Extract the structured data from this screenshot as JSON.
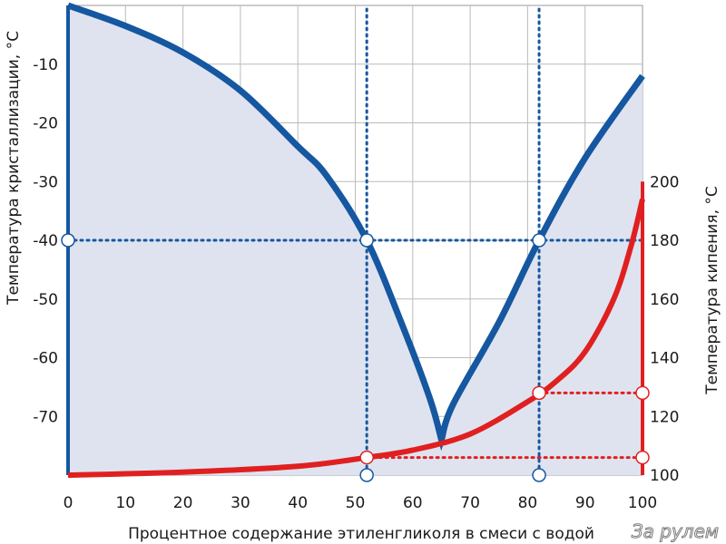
{
  "chart_data": {
    "type": "line",
    "xlabel": "Процентное содержание этиленгликоля в смеси с водой",
    "ylabel_left": "Температура кристаллизации, °C",
    "ylabel_right": "Температура кипения, °C",
    "xlim": [
      0,
      100
    ],
    "ylim_left": [
      -80,
      0
    ],
    "ylim_right": [
      100,
      200
    ],
    "x_ticks": [
      "0",
      "10",
      "20",
      "30",
      "40",
      "50",
      "60",
      "70",
      "80",
      "90",
      "100"
    ],
    "y_left_ticks": [
      "-10",
      "-20",
      "-30",
      "-40",
      "-50",
      "-60",
      "-70"
    ],
    "y_right_ticks": [
      "100",
      "120",
      "140",
      "160",
      "180",
      "200"
    ],
    "grid": true,
    "colors": {
      "crystallization": "#1557a0",
      "boiling": "#e02020",
      "fill": "#dfe3f0",
      "grid": "#bbbbbb"
    },
    "series": [
      {
        "axis": "left",
        "x": [
          0,
          10,
          20,
          30,
          40,
          45,
          52,
          58,
          63,
          65,
          67,
          75,
          82,
          90,
          100
        ],
        "y": [
          0,
          -3.5,
          -8,
          -14.5,
          -24,
          -29,
          -40,
          -54,
          -67,
          -74,
          -68,
          -54,
          -40,
          -26,
          -12
        ]
      },
      {
        "axis": "right",
        "x": [
          0,
          20,
          40,
          52,
          60,
          70,
          80,
          85,
          90,
          95,
          98,
          100
        ],
        "y": [
          100,
          101,
          103,
          106,
          108.5,
          114,
          125,
          132,
          142,
          160,
          178,
          194
        ]
      }
    ],
    "guides": [
      {
        "x": 52,
        "y_left": -40,
        "y_right": 106
      },
      {
        "x": 82,
        "y_left": -40,
        "y_right": 128
      }
    ]
  },
  "watermark": "За рулем"
}
